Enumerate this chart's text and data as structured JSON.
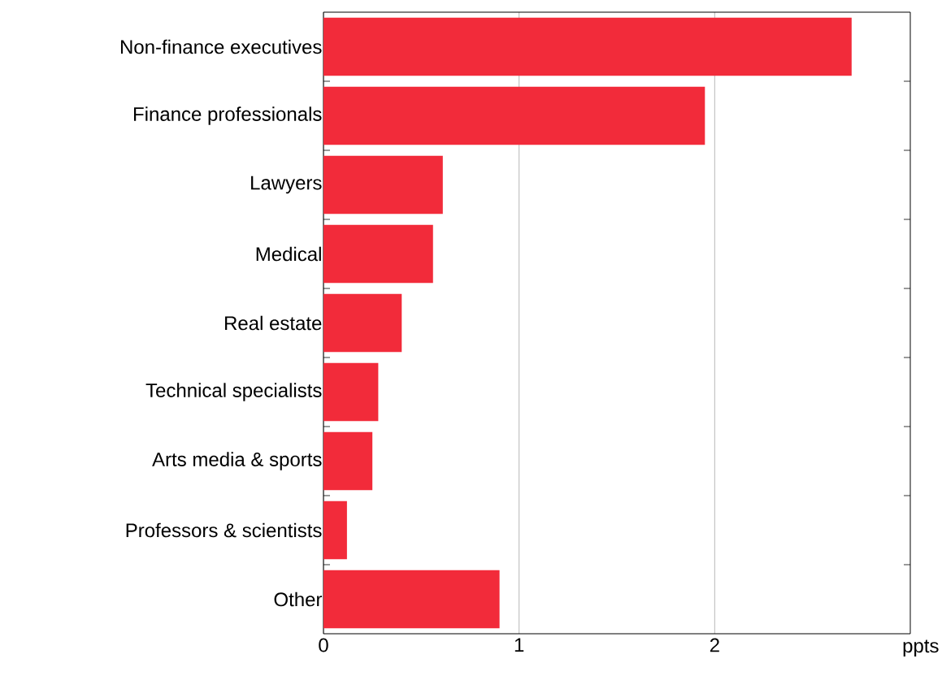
{
  "chart_data": {
    "type": "bar",
    "orientation": "horizontal",
    "xlabel": "ppts",
    "categories": [
      "Non-finance executives",
      "Finance professionals",
      "Lawyers",
      "Medical",
      "Real estate",
      "Technical specialists",
      "Arts media & sports",
      "Professors & scientists",
      "Other"
    ],
    "values": [
      2.7,
      1.95,
      0.61,
      0.56,
      0.4,
      0.28,
      0.25,
      0.12,
      0.9
    ],
    "color": "#f22b3a",
    "xlim": [
      0,
      3
    ],
    "xticks": [
      0,
      1,
      2
    ],
    "grid": "x"
  }
}
